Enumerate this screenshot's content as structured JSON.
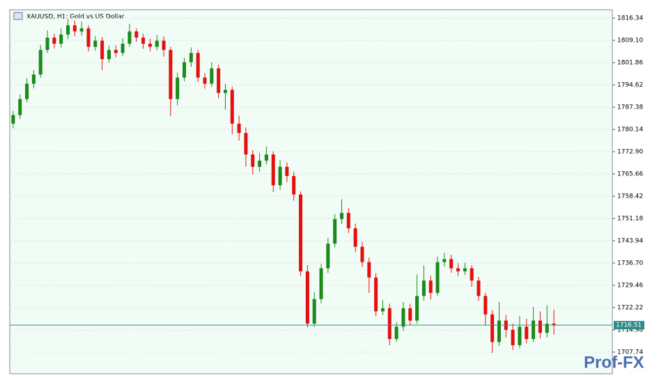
{
  "chart_data": {
    "type": "candlestick",
    "title": "XAUUSD, H1:  Gold vs US Dollar",
    "open": [
      1782,
      1784.8,
      1790,
      1795,
      1798,
      1806,
      1810,
      1808,
      1811,
      1814,
      1812,
      1813,
      1807,
      1809,
      1803,
      1806,
      1805,
      1808,
      1812,
      1810,
      1808,
      1807,
      1809,
      1806,
      1790,
      1797,
      1802,
      1805,
      1797,
      1795,
      1800,
      1792,
      1793,
      1782,
      1779,
      1772,
      1768,
      1770,
      1772,
      1762,
      1768,
      1765,
      1759,
      1734,
      1717,
      1725,
      1735,
      1743,
      1751,
      1753,
      1748,
      1742,
      1737,
      1732,
      1721,
      1722,
      1712,
      1716,
      1722,
      1718,
      1726,
      1731,
      1727,
      1737,
      1738,
      1735,
      1734,
      1735,
      1731,
      1726,
      1720,
      1711,
      1718,
      1715,
      1710,
      1716,
      1712,
      1718,
      1714,
      1717
    ],
    "high": [
      1786.2,
      1791.5,
      1796.8,
      1799.4,
      1807.6,
      1812.4,
      1811.3,
      1813,
      1816,
      1815.5,
      1815.2,
      1814,
      1810.5,
      1810.2,
      1807.4,
      1807.5,
      1809.8,
      1814.5,
      1813,
      1811.2,
      1809.6,
      1810.8,
      1810.4,
      1807,
      1798.6,
      1803.4,
      1806.8,
      1806,
      1798.5,
      1802,
      1801.2,
      1795,
      1794,
      1784.6,
      1780.8,
      1773.4,
      1772.5,
      1774.6,
      1773,
      1770.2,
      1769.5,
      1766.4,
      1760,
      1736,
      1727.2,
      1736.4,
      1744.8,
      1752.6,
      1757.5,
      1754.6,
      1749.5,
      1743.6,
      1738.5,
      1733.4,
      1724.6,
      1723.5,
      1717.5,
      1724,
      1723.5,
      1733,
      1736,
      1732.6,
      1738.8,
      1740,
      1739.4,
      1736.6,
      1736.8,
      1736,
      1732.2,
      1727,
      1721.4,
      1724,
      1719.8,
      1717,
      1719.5,
      1718.6,
      1722.4,
      1721,
      1723,
      1721.5
    ],
    "low": [
      1780.5,
      1783.6,
      1789,
      1793.5,
      1797,
      1805,
      1806.5,
      1806.8,
      1809.5,
      1810.4,
      1810.6,
      1805.5,
      1805.8,
      1799.5,
      1801.8,
      1803.6,
      1804,
      1807,
      1808.6,
      1806.4,
      1805.5,
      1805.9,
      1803.8,
      1784.5,
      1788,
      1795.8,
      1800.5,
      1795.6,
      1793.4,
      1794,
      1790.3,
      1786.5,
      1778.5,
      1776.5,
      1768,
      1765.5,
      1766.4,
      1768.8,
      1759.8,
      1760.5,
      1763,
      1757,
      1732.5,
      1715.8,
      1716,
      1723.6,
      1733.5,
      1741.8,
      1749.4,
      1746.5,
      1740.2,
      1735.4,
      1727,
      1719.5,
      1719.8,
      1710,
      1711,
      1714.6,
      1716.5,
      1717,
      1724.5,
      1724.8,
      1726,
      1735.5,
      1733.6,
      1732.5,
      1732.8,
      1729,
      1724.4,
      1716.5,
      1707.5,
      1709.8,
      1712.5,
      1708.4,
      1709,
      1710.6,
      1711,
      1712.2,
      1712.5,
      1713.5
    ],
    "close": [
      1784.8,
      1790,
      1795,
      1798,
      1806,
      1810,
      1808,
      1811,
      1814,
      1812,
      1813,
      1807,
      1809,
      1803,
      1806,
      1805,
      1808,
      1812,
      1810,
      1808,
      1807,
      1809,
      1806,
      1790,
      1797,
      1802,
      1805,
      1797,
      1795,
      1800,
      1792,
      1793,
      1782,
      1779,
      1772,
      1768,
      1770,
      1772,
      1762,
      1768,
      1765,
      1759,
      1734,
      1717,
      1725,
      1735,
      1743,
      1751,
      1753,
      1748,
      1742,
      1737,
      1732,
      1721,
      1722,
      1712,
      1716,
      1722,
      1718,
      1726,
      1731,
      1727,
      1737,
      1738,
      1735,
      1734,
      1735,
      1731,
      1726,
      1720,
      1711,
      1718,
      1715,
      1710,
      1716,
      1712,
      1718,
      1714,
      1717,
      1716.51
    ],
    "up_color": "#1a8a1a",
    "down_color": "#e31010",
    "ylim": [
      1700.71,
      1819.06
    ],
    "yticks": [
      1816.34,
      {
        "value": 1809.1,
        "label": "1809.10"
      },
      1801.86,
      1794.62,
      1787.38,
      1780.14,
      {
        "value": 1772.9,
        "label": "1772.90"
      },
      1765.66,
      1758.42,
      1751.18,
      1743.94,
      {
        "value": 1736.7,
        "label": "1736.70"
      },
      1729.46,
      1722.22,
      1714.98,
      1707.74
    ],
    "grid": true,
    "last_price": 1716.51,
    "watermark": "Prof-FX"
  }
}
